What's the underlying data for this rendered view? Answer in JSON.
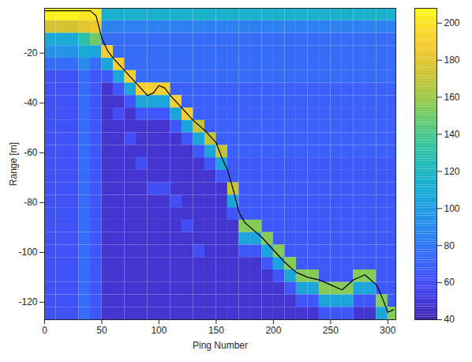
{
  "chart_data": {
    "type": "heatmap",
    "xlabel": "Ping Number",
    "ylabel": "Range [m]",
    "xlim": [
      0,
      307
    ],
    "ylim": [
      -127,
      -2
    ],
    "xticks": [
      0,
      50,
      100,
      150,
      200,
      250,
      300
    ],
    "yticks": [
      -20,
      -40,
      -60,
      -80,
      -100,
      -120
    ],
    "cells": {
      "x_edges": [
        0,
        10,
        20,
        30,
        40,
        50,
        60,
        70,
        80,
        90,
        100,
        110,
        120,
        130,
        140,
        150,
        160,
        170,
        180,
        190,
        200,
        210,
        220,
        230,
        240,
        250,
        260,
        270,
        280,
        290,
        300,
        310
      ],
      "y_edges": [
        -2,
        -7,
        -12,
        -17,
        -22,
        -27,
        -32,
        -37,
        -42,
        -47,
        -52,
        -57,
        -62,
        -67,
        -72,
        -77,
        -82,
        -87,
        -92,
        -97,
        -102,
        -107,
        -112,
        -117,
        -122,
        -127
      ],
      "values": [
        [
          205,
          205,
          205,
          200,
          200,
          115,
          115,
          115,
          115,
          115,
          115,
          115,
          115,
          115,
          115,
          115,
          115,
          115,
          115,
          115,
          115,
          115,
          115,
          115,
          115,
          115,
          115,
          115,
          115,
          115,
          115
        ],
        [
          175,
          175,
          175,
          180,
          185,
          85,
          85,
          85,
          85,
          85,
          85,
          85,
          85,
          85,
          85,
          85,
          85,
          85,
          85,
          85,
          85,
          85,
          85,
          85,
          85,
          85,
          85,
          85,
          85,
          85,
          85
        ],
        [
          110,
          110,
          110,
          130,
          150,
          75,
          75,
          75,
          75,
          75,
          75,
          75,
          75,
          75,
          75,
          75,
          75,
          75,
          75,
          75,
          75,
          75,
          75,
          75,
          75,
          75,
          75,
          75,
          75,
          75,
          75
        ],
        [
          95,
          95,
          95,
          110,
          105,
          190,
          75,
          75,
          75,
          75,
          75,
          75,
          75,
          75,
          75,
          75,
          75,
          75,
          75,
          75,
          75,
          75,
          75,
          75,
          75,
          75,
          75,
          75,
          75,
          75,
          75
        ],
        [
          75,
          75,
          75,
          90,
          75,
          105,
          190,
          75,
          75,
          75,
          75,
          75,
          75,
          75,
          75,
          75,
          75,
          75,
          75,
          75,
          75,
          75,
          75,
          75,
          75,
          75,
          75,
          75,
          75,
          75,
          75
        ],
        [
          62,
          62,
          62,
          75,
          65,
          65,
          105,
          190,
          75,
          75,
          75,
          75,
          75,
          75,
          75,
          75,
          75,
          75,
          75,
          75,
          75,
          75,
          75,
          75,
          75,
          75,
          75,
          75,
          75,
          75,
          75
        ],
        [
          62,
          62,
          62,
          75,
          65,
          48,
          65,
          105,
          190,
          190,
          190,
          70,
          70,
          70,
          70,
          70,
          70,
          70,
          70,
          70,
          70,
          70,
          70,
          70,
          70,
          70,
          70,
          70,
          70,
          70,
          70
        ],
        [
          62,
          62,
          62,
          75,
          65,
          48,
          48,
          65,
          105,
          105,
          105,
          190,
          70,
          70,
          70,
          70,
          70,
          70,
          70,
          70,
          70,
          70,
          70,
          70,
          70,
          70,
          70,
          70,
          70,
          70,
          70
        ],
        [
          62,
          62,
          62,
          75,
          65,
          48,
          60,
          48,
          65,
          65,
          65,
          105,
          190,
          70,
          70,
          70,
          70,
          70,
          70,
          70,
          70,
          70,
          70,
          70,
          70,
          70,
          70,
          70,
          70,
          70,
          70
        ],
        [
          62,
          62,
          62,
          75,
          65,
          48,
          48,
          48,
          48,
          48,
          48,
          65,
          105,
          170,
          70,
          70,
          70,
          70,
          70,
          70,
          70,
          70,
          70,
          70,
          70,
          70,
          70,
          70,
          70,
          70,
          70
        ],
        [
          62,
          62,
          62,
          75,
          65,
          48,
          48,
          60,
          48,
          48,
          48,
          48,
          65,
          105,
          170,
          70,
          70,
          70,
          70,
          70,
          70,
          70,
          70,
          70,
          70,
          70,
          70,
          70,
          70,
          70,
          70
        ],
        [
          62,
          62,
          62,
          75,
          65,
          48,
          48,
          48,
          48,
          48,
          48,
          48,
          48,
          65,
          105,
          170,
          70,
          70,
          70,
          70,
          70,
          70,
          70,
          70,
          70,
          70,
          70,
          70,
          70,
          70,
          70
        ],
        [
          62,
          62,
          62,
          75,
          65,
          48,
          48,
          48,
          60,
          48,
          48,
          48,
          48,
          48,
          65,
          105,
          66,
          66,
          66,
          66,
          66,
          66,
          66,
          66,
          66,
          66,
          66,
          66,
          66,
          66,
          66
        ],
        [
          62,
          62,
          62,
          75,
          65,
          48,
          48,
          48,
          48,
          48,
          48,
          48,
          48,
          48,
          48,
          65,
          66,
          66,
          66,
          66,
          66,
          66,
          66,
          66,
          66,
          66,
          66,
          66,
          66,
          66,
          66
        ],
        [
          62,
          62,
          62,
          75,
          65,
          48,
          48,
          48,
          48,
          60,
          60,
          48,
          48,
          48,
          48,
          48,
          170,
          66,
          66,
          66,
          66,
          66,
          66,
          66,
          66,
          66,
          66,
          66,
          66,
          66,
          66
        ],
        [
          62,
          62,
          62,
          75,
          65,
          48,
          48,
          48,
          48,
          48,
          48,
          60,
          48,
          48,
          48,
          48,
          105,
          66,
          66,
          66,
          66,
          66,
          66,
          66,
          66,
          66,
          66,
          66,
          66,
          66,
          66
        ],
        [
          62,
          62,
          62,
          75,
          65,
          48,
          48,
          48,
          48,
          48,
          48,
          48,
          48,
          48,
          48,
          48,
          65,
          66,
          66,
          66,
          66,
          66,
          66,
          66,
          66,
          66,
          66,
          66,
          66,
          66,
          66
        ],
        [
          62,
          62,
          62,
          75,
          65,
          48,
          48,
          48,
          48,
          48,
          48,
          48,
          60,
          48,
          48,
          48,
          48,
          155,
          155,
          66,
          66,
          66,
          66,
          66,
          66,
          66,
          66,
          66,
          66,
          66,
          66
        ],
        [
          62,
          62,
          62,
          75,
          65,
          48,
          48,
          48,
          48,
          48,
          48,
          48,
          48,
          48,
          48,
          48,
          48,
          105,
          105,
          155,
          66,
          66,
          66,
          66,
          66,
          66,
          66,
          66,
          66,
          66,
          66
        ],
        [
          62,
          62,
          62,
          75,
          65,
          48,
          48,
          48,
          48,
          48,
          48,
          48,
          48,
          60,
          48,
          48,
          48,
          65,
          65,
          105,
          155,
          66,
          66,
          66,
          66,
          66,
          66,
          66,
          66,
          66,
          66
        ],
        [
          62,
          62,
          62,
          75,
          65,
          48,
          48,
          48,
          48,
          48,
          48,
          48,
          48,
          48,
          48,
          48,
          48,
          48,
          48,
          65,
          105,
          155,
          66,
          66,
          66,
          66,
          66,
          66,
          66,
          66,
          66
        ],
        [
          62,
          62,
          62,
          75,
          65,
          48,
          48,
          48,
          48,
          48,
          48,
          48,
          48,
          48,
          48,
          48,
          48,
          48,
          48,
          48,
          65,
          105,
          155,
          155,
          66,
          66,
          66,
          155,
          155,
          66,
          66
        ],
        [
          62,
          62,
          62,
          75,
          65,
          48,
          48,
          48,
          48,
          48,
          48,
          48,
          48,
          48,
          48,
          48,
          48,
          48,
          48,
          48,
          48,
          65,
          105,
          105,
          155,
          155,
          155,
          105,
          105,
          66,
          66
        ],
        [
          62,
          62,
          62,
          75,
          65,
          48,
          48,
          48,
          48,
          48,
          48,
          48,
          48,
          48,
          48,
          48,
          48,
          48,
          48,
          48,
          48,
          48,
          65,
          65,
          105,
          105,
          105,
          65,
          65,
          155,
          66
        ],
        [
          62,
          62,
          62,
          75,
          65,
          48,
          48,
          48,
          48,
          48,
          48,
          48,
          48,
          48,
          48,
          48,
          48,
          48,
          48,
          48,
          48,
          48,
          48,
          48,
          65,
          65,
          65,
          48,
          48,
          105,
          155
        ]
      ]
    },
    "colorbar": {
      "range": [
        40,
        208
      ],
      "ticks": [
        40,
        60,
        80,
        100,
        120,
        140,
        160,
        180,
        200
      ]
    },
    "bottom_line": {
      "color": "#000000",
      "x": [
        0,
        10,
        20,
        30,
        40,
        45,
        50,
        55,
        60,
        70,
        80,
        90,
        95,
        100,
        105,
        110,
        120,
        130,
        140,
        150,
        155,
        160,
        165,
        170,
        175,
        180,
        190,
        200,
        210,
        220,
        230,
        240,
        250,
        260,
        270,
        280,
        290,
        295,
        300,
        305
      ],
      "values": [
        -3,
        -3,
        -3,
        -3,
        -3,
        -5,
        -14,
        -19,
        -22,
        -27,
        -32,
        -37,
        -36,
        -33,
        -34,
        -37,
        -42,
        -47,
        -51,
        -56,
        -62,
        -67,
        -75,
        -84,
        -88,
        -90,
        -94,
        -99,
        -104,
        -108,
        -110,
        -111,
        -113,
        -115,
        -111,
        -109,
        -113,
        -118,
        -124,
        -123
      ]
    }
  }
}
